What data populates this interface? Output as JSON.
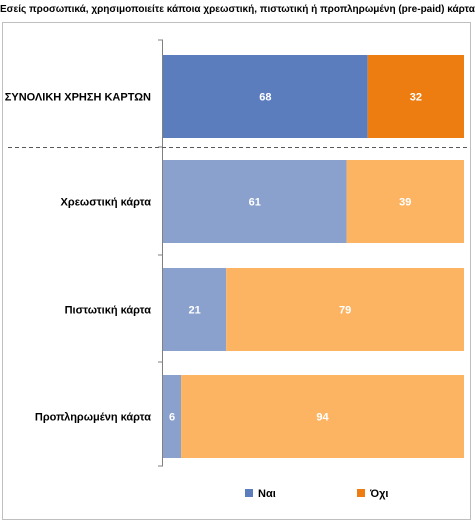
{
  "chart_data": {
    "type": "bar",
    "orientation": "horizontal",
    "stacked": true,
    "title": "Εσείς προσωπικά, χρησιμοποιείτε κάποια χρεωστική, πιστωτική ή προπληρωμένη (pre-paid) κάρτα;",
    "categories": [
      "ΣΥΝΟΛΙΚΗ ΧΡΗΣΗ ΚΑΡΤΩΝ",
      "Χρεωστική κάρτα",
      "Πιστωτική κάρτα",
      "Προπληρωμένη κάρτα"
    ],
    "series": [
      {
        "name": "Ναι",
        "values": [
          68,
          61,
          21,
          6
        ],
        "colors": [
          "#5b7dbe",
          "#8aa0cd",
          "#8aa0cd",
          "#8aa0cd"
        ]
      },
      {
        "name": "Όχι",
        "values": [
          32,
          39,
          79,
          94
        ],
        "colors": [
          "#ed7d10",
          "#fdb462",
          "#fdb462",
          "#fdb462"
        ]
      }
    ],
    "xlim": [
      0,
      100
    ],
    "grid": false,
    "legend_position": "bottom",
    "legend_colors": {
      "Ναι": "#5b7dbe",
      "Όχι": "#ed7d10"
    },
    "separator_after_first": true
  }
}
